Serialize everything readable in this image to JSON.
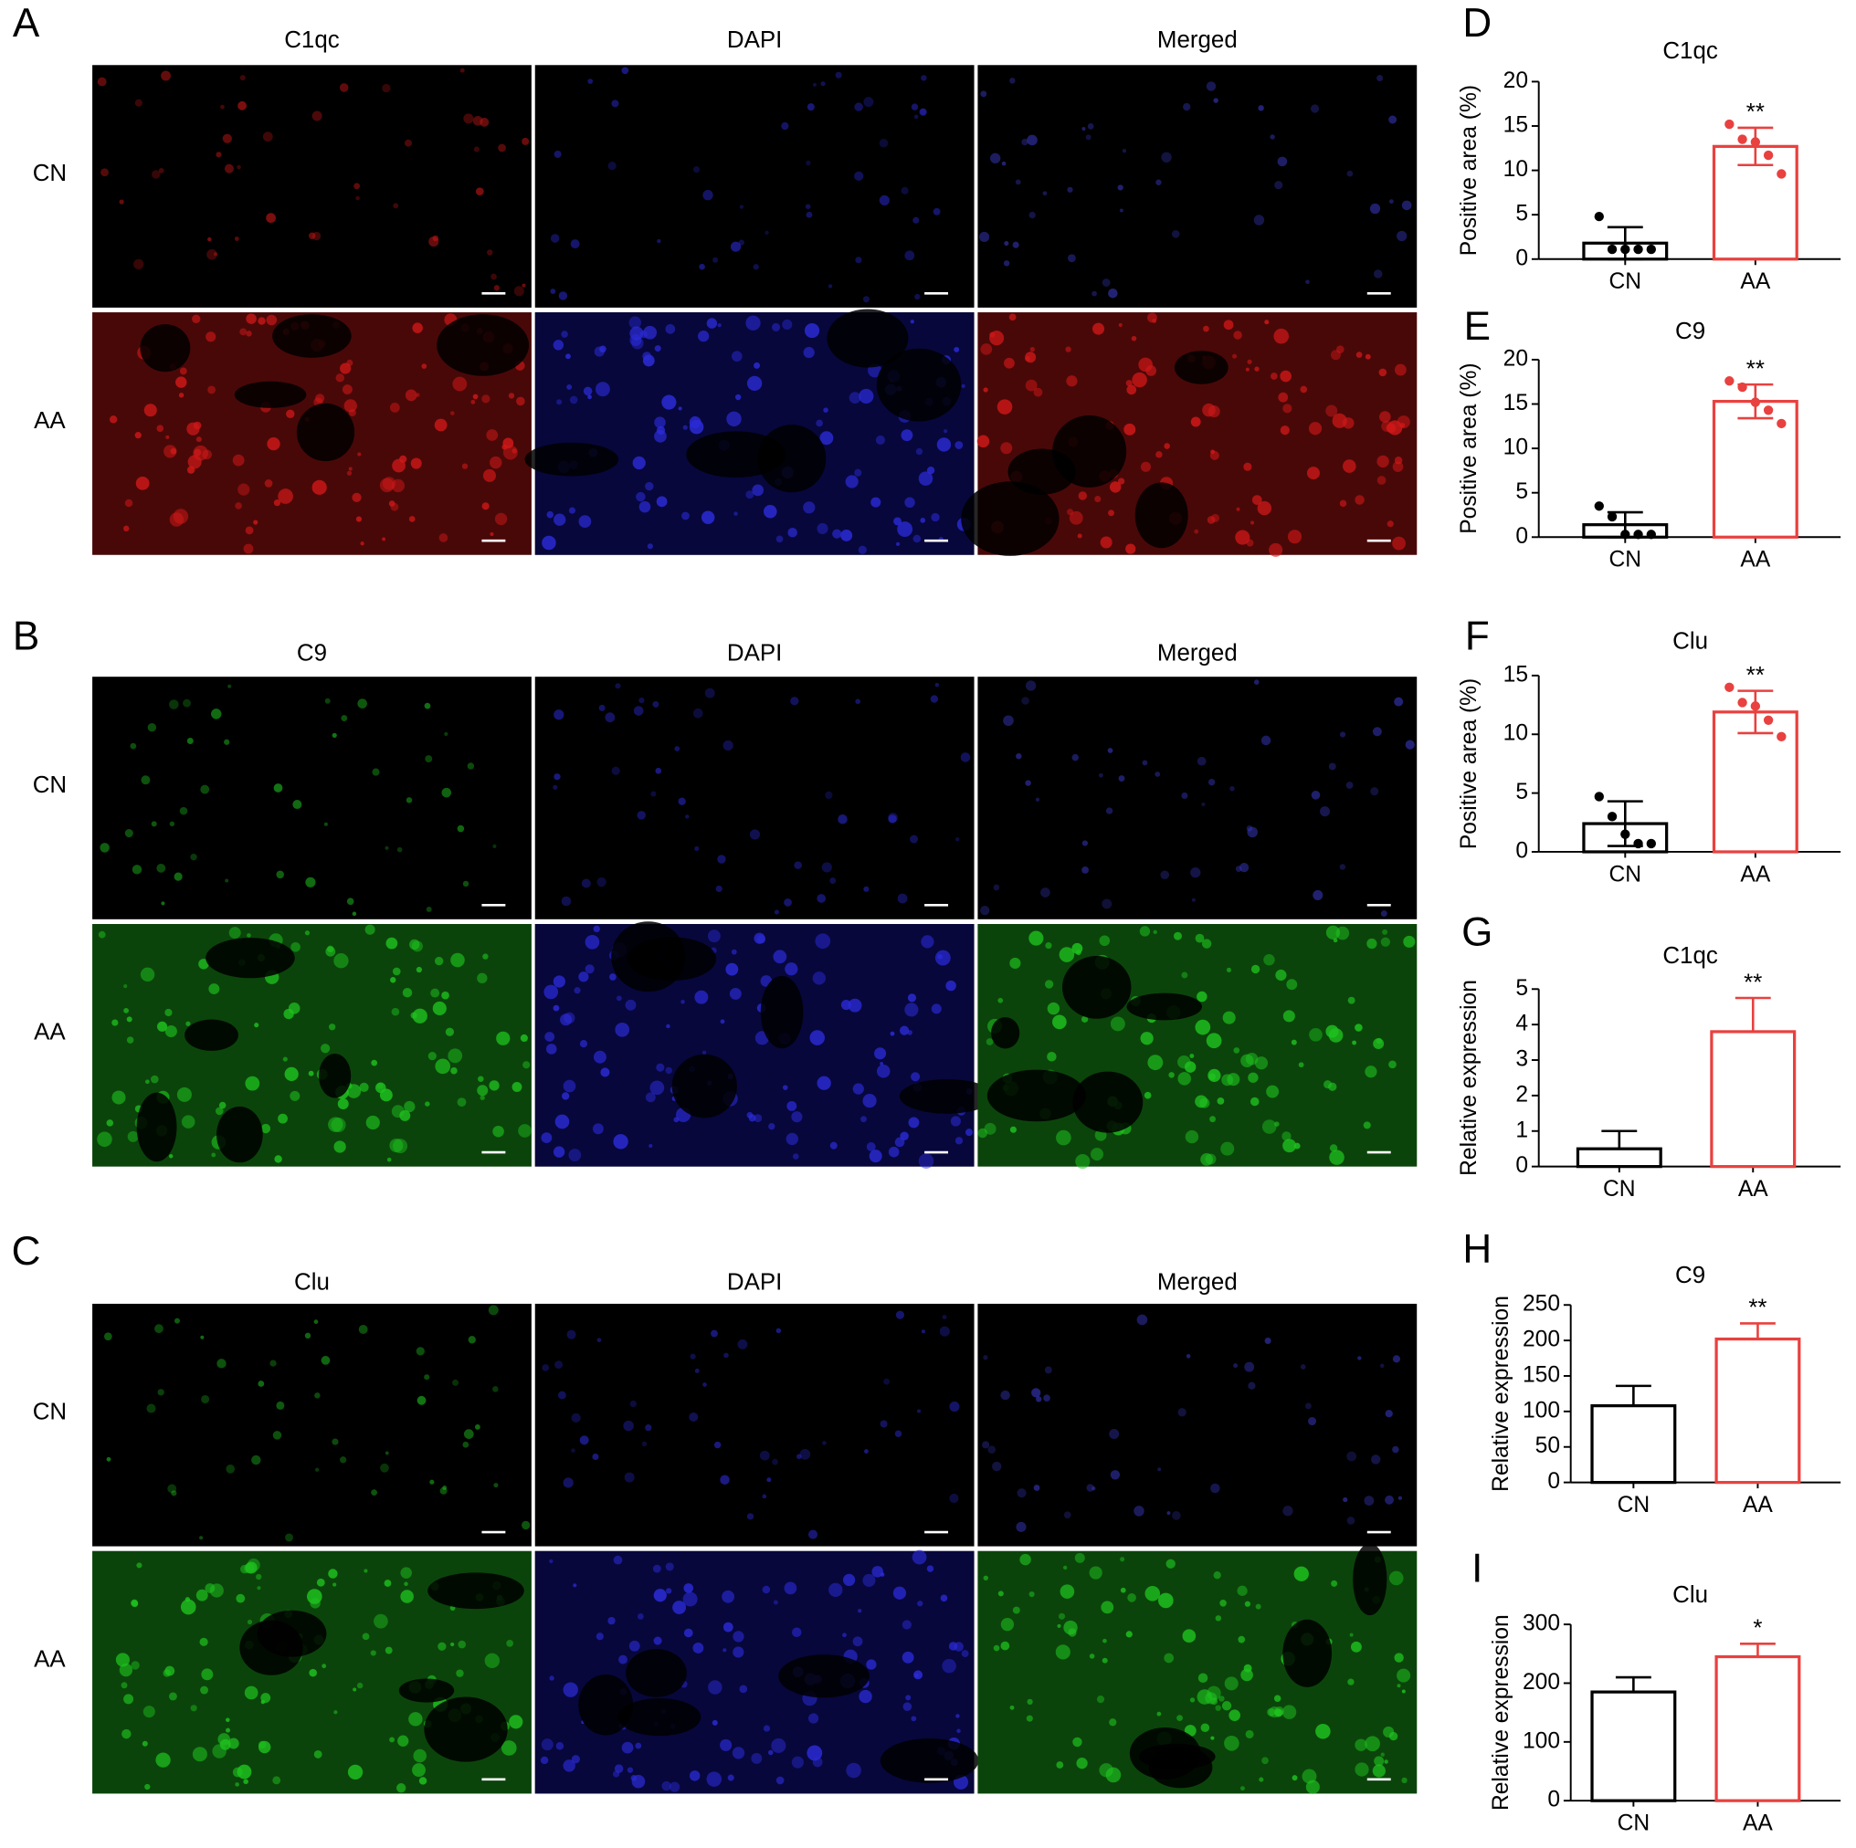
{
  "image_panels": [
    {
      "label": "A",
      "columns": [
        "C1qc",
        "DAPI",
        "Merged"
      ],
      "rows": [
        "CN",
        "AA"
      ],
      "stain_color": "#d01818"
    },
    {
      "label": "B",
      "columns": [
        "C9",
        "DAPI",
        "Merged"
      ],
      "rows": [
        "CN",
        "AA"
      ],
      "stain_color": "#1fc21f"
    },
    {
      "label": "C",
      "columns": [
        "Clu",
        "DAPI",
        "Merged"
      ],
      "rows": [
        "CN",
        "AA"
      ],
      "stain_color": "#1fc21f"
    }
  ],
  "chart_data": [
    {
      "type": "bar",
      "panel_label": "D",
      "title": "C1qc",
      "ylabel": "Positive area (%)",
      "categories": [
        "CN",
        "AA"
      ],
      "values": [
        1.8,
        12.7
      ],
      "errors": [
        1.8,
        2.1
      ],
      "points": [
        [
          4.8,
          1.1,
          1.1,
          1.1,
          1.1
        ],
        [
          15.2,
          13.5,
          13.2,
          11.7,
          9.6
        ]
      ],
      "significance": [
        null,
        "**"
      ],
      "colors": [
        "#000000",
        "#e8413f"
      ],
      "ylim": [
        0,
        20
      ],
      "yticks": [
        0,
        5,
        10,
        15,
        20
      ]
    },
    {
      "type": "bar",
      "panel_label": "E",
      "title": "C9",
      "ylabel": "Positive area (%)",
      "categories": [
        "CN",
        "AA"
      ],
      "values": [
        1.4,
        15.3
      ],
      "errors": [
        1.4,
        1.9
      ],
      "points": [
        [
          3.5,
          2.3,
          0.3,
          0.3,
          0.3
        ],
        [
          17.6,
          16.9,
          15.2,
          14.3,
          12.8
        ]
      ],
      "significance": [
        null,
        "**"
      ],
      "colors": [
        "#000000",
        "#e8413f"
      ],
      "ylim": [
        0,
        20
      ],
      "yticks": [
        0,
        5,
        10,
        15,
        20
      ]
    },
    {
      "type": "bar",
      "panel_label": "F",
      "title": "Clu",
      "ylabel": "Positive area (%)",
      "categories": [
        "CN",
        "AA"
      ],
      "values": [
        2.4,
        11.9
      ],
      "errors": [
        1.9,
        1.8
      ],
      "points": [
        [
          4.7,
          3.0,
          1.5,
          0.7,
          0.7
        ],
        [
          14.0,
          12.7,
          12.4,
          11.2,
          9.8
        ]
      ],
      "significance": [
        null,
        "**"
      ],
      "colors": [
        "#000000",
        "#e8413f"
      ],
      "ylim": [
        0,
        15
      ],
      "yticks": [
        0,
        5,
        10,
        15
      ]
    },
    {
      "type": "bar",
      "panel_label": "G",
      "title": "C1qc",
      "ylabel": "Relative expression",
      "categories": [
        "CN",
        "AA"
      ],
      "values": [
        0.5,
        3.8
      ],
      "errors": [
        0.5,
        0.95
      ],
      "significance": [
        null,
        "**"
      ],
      "colors": [
        "#000000",
        "#e8413f"
      ],
      "ylim": [
        0,
        5
      ],
      "yticks": [
        0,
        1,
        2,
        3,
        4,
        5
      ]
    },
    {
      "type": "bar",
      "panel_label": "H",
      "title": "C9",
      "ylabel": "Relative expression",
      "categories": [
        "CN",
        "AA"
      ],
      "values": [
        108,
        202
      ],
      "errors": [
        28,
        22
      ],
      "significance": [
        null,
        "**"
      ],
      "colors": [
        "#000000",
        "#e8413f"
      ],
      "ylim": [
        0,
        250
      ],
      "yticks": [
        0,
        50,
        100,
        150,
        200,
        250
      ]
    },
    {
      "type": "bar",
      "panel_label": "I",
      "title": "Clu",
      "ylabel": "Relative expression",
      "categories": [
        "CN",
        "AA"
      ],
      "values": [
        185,
        245
      ],
      "errors": [
        25,
        22
      ],
      "significance": [
        null,
        "*"
      ],
      "colors": [
        "#000000",
        "#e8413f"
      ],
      "ylim": [
        0,
        300
      ],
      "yticks": [
        0,
        100,
        200,
        300
      ]
    }
  ]
}
